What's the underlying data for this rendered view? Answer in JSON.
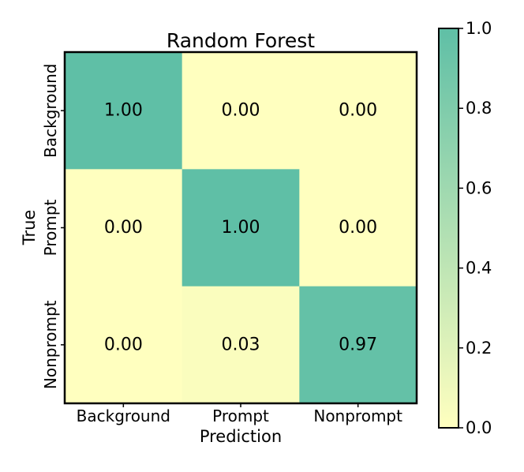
{
  "chart_data": {
    "type": "heatmap",
    "title": "Random Forest",
    "xlabel": "Prediction",
    "ylabel": "True",
    "x_categories": [
      "Background",
      "Prompt",
      "Nonprompt"
    ],
    "y_categories": [
      "Background",
      "Prompt",
      "Nonprompt"
    ],
    "values": [
      [
        1.0,
        0.0,
        0.0
      ],
      [
        0.0,
        1.0,
        0.0
      ],
      [
        0.0,
        0.03,
        0.97
      ]
    ],
    "value_labels": [
      [
        "1.00",
        "0.00",
        "0.00"
      ],
      [
        "0.00",
        "1.00",
        "0.00"
      ],
      [
        "0.00",
        "0.03",
        "0.97"
      ]
    ],
    "colorbar": {
      "range": [
        0,
        1
      ],
      "ticks": [
        0.0,
        0.2,
        0.4,
        0.6,
        0.8,
        1.0
      ],
      "tick_labels": [
        "0.0",
        "0.2",
        "0.4",
        "0.6",
        "0.8",
        "1.0"
      ],
      "colormap": [
        "#ffffbf",
        "#5fbfa6"
      ]
    },
    "grid": false
  }
}
